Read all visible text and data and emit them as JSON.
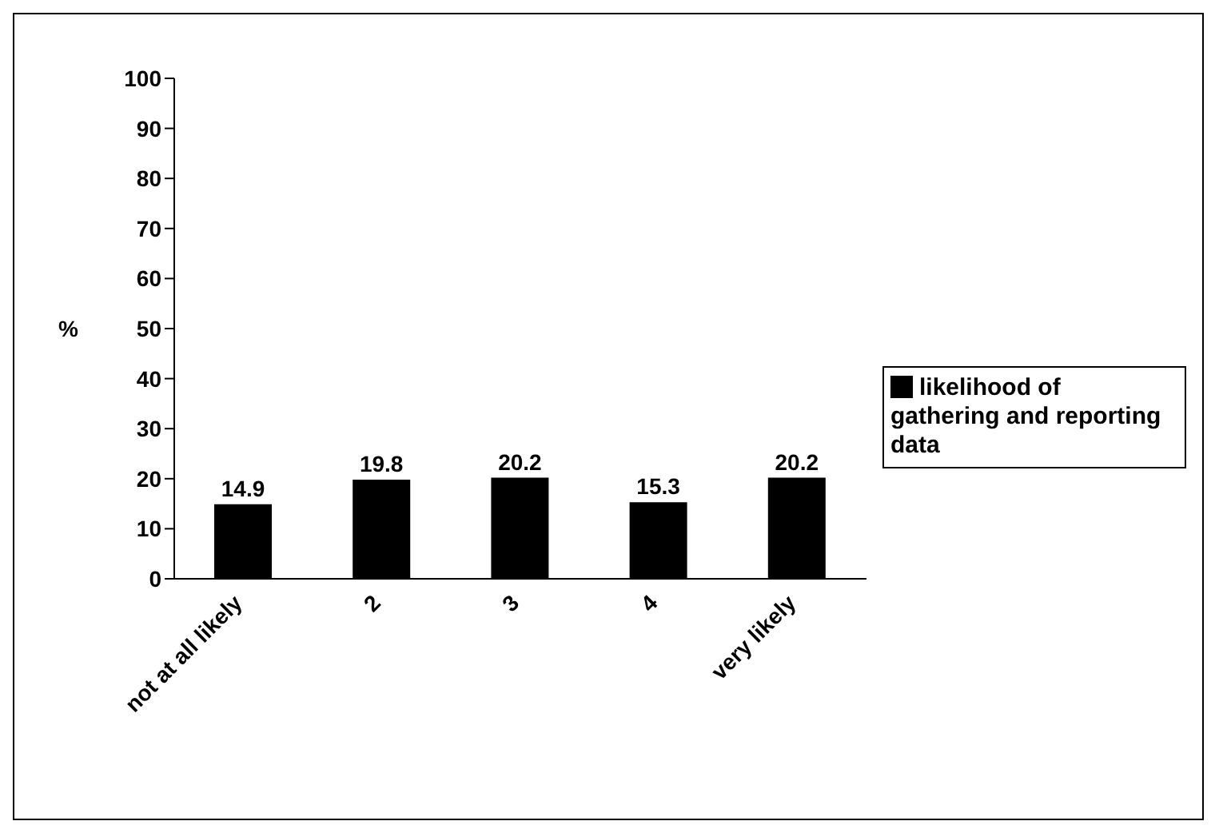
{
  "chart_data": {
    "type": "bar",
    "categories": [
      "not at all likely",
      "2",
      "3",
      "4",
      "very likely"
    ],
    "series": [
      {
        "name": "likelihood of gathering and reporting data",
        "color": "#000000",
        "values": [
          14.9,
          19.8,
          20.2,
          15.3,
          20.2
        ]
      }
    ],
    "ylabel": "%",
    "ylim": [
      0,
      100
    ],
    "yticks": [
      0,
      10,
      20,
      30,
      40,
      50,
      60,
      70,
      80,
      90,
      100
    ],
    "grid": false,
    "legend": "right",
    "data_labels": true
  }
}
